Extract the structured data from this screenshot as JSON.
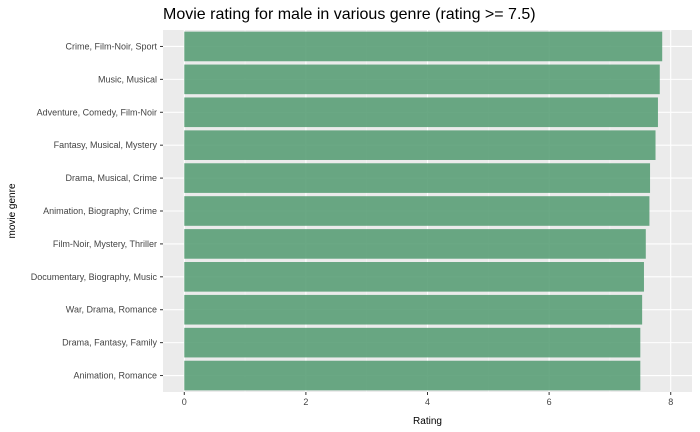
{
  "chart_data": {
    "type": "bar",
    "orientation": "horizontal",
    "title": "Movie rating for male in various genre (rating >= 7.5)",
    "xlabel": "Rating",
    "ylabel": "movie genre",
    "xlim": [
      -0.35,
      8.35
    ],
    "x_ticks": [
      "0",
      "2",
      "4",
      "6",
      "8"
    ],
    "grid": true,
    "bar_color": "#5a9e77",
    "panel_color": "#ebebeb",
    "categories": [
      "Crime, Film-Noir, Sport",
      "Music, Musical",
      "Adventure, Comedy, Film-Noir",
      "Fantasy, Musical, Mystery",
      "Drama, Musical, Crime",
      "Animation, Biography, Crime",
      "Film-Noir, Mystery, Thriller",
      "Documentary, Biography, Music",
      "War, Drama, Romance",
      "Drama, Fantasy, Family",
      "Animation, Romance"
    ],
    "values": [
      7.86,
      7.82,
      7.79,
      7.75,
      7.66,
      7.65,
      7.59,
      7.56,
      7.53,
      7.5,
      7.5
    ]
  }
}
